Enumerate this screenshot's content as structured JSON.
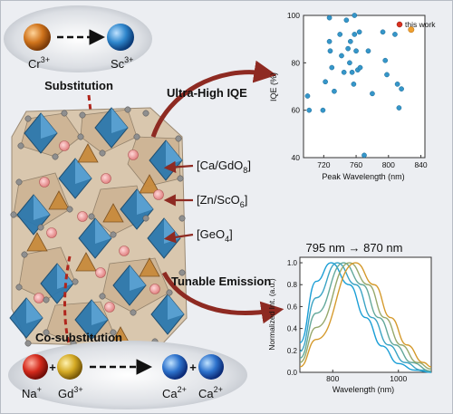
{
  "figure": {
    "labels": {
      "substitution": "Substitution",
      "co_substitution": "Co-substitution",
      "ultra_high_iqe": "Ultra-High IQE",
      "tunable_emission": "Tunable Emission"
    },
    "ions": {
      "cr": "Cr",
      "cr_charge": "3+",
      "sc": "Sc",
      "sc_charge": "3+",
      "na": "Na",
      "na_charge": "+",
      "gd": "Gd",
      "gd_charge": "3+",
      "ca1": "Ca",
      "ca1_charge": "2+",
      "ca2": "Ca",
      "ca2_charge": "2+",
      "plus1": "+",
      "plus2": "+"
    },
    "sites": [
      {
        "pre": "[Ca/GdO",
        "sub": "8",
        "post": "]"
      },
      {
        "pre": "[Zn/ScO",
        "sub": "6",
        "post": "]"
      },
      {
        "pre": "[GeO",
        "sub": "4",
        "post": "]"
      }
    ],
    "colors": {
      "cr_ion": "#c86a18",
      "sc_ion": "#2d80c6",
      "na_ion": "#c4241c",
      "gd_ion": "#c8a21c",
      "ca_ion": "#2d6fc6",
      "arrow": "#8e2a22",
      "octahedra": "#2c78ae",
      "tetrahedra": "#c88a3c",
      "dodecahedra": "#d7c4a8"
    }
  },
  "chart_data": [
    {
      "type": "scatter",
      "xlabel": "Peak Wavelength (nm)",
      "ylabel": "IQE (%)",
      "xlim": [
        695,
        845
      ],
      "ylim": [
        40,
        100
      ],
      "xticks": [
        720,
        760,
        800,
        840
      ],
      "yticks": [
        40,
        60,
        80,
        100
      ],
      "grid": false,
      "legend": "top-right",
      "series": [
        {
          "name": "",
          "color": "#3596c9",
          "points": [
            [
              700,
              66
            ],
            [
              702,
              60
            ],
            [
              719,
              60
            ],
            [
              722,
              72
            ],
            [
              727,
              99
            ],
            [
              727,
              89
            ],
            [
              728,
              85
            ],
            [
              730,
              78
            ],
            [
              733,
              68
            ],
            [
              740,
              92
            ],
            [
              742,
              83
            ],
            [
              745,
              76
            ],
            [
              748,
              98
            ],
            [
              750,
              86
            ],
            [
              752,
              80
            ],
            [
              753,
              89
            ],
            [
              755,
              76
            ],
            [
              757,
              71
            ],
            [
              758,
              100
            ],
            [
              758,
              92
            ],
            [
              760,
              85
            ],
            [
              762,
              77
            ],
            [
              764,
              93
            ],
            [
              765,
              78
            ],
            [
              770,
              41
            ],
            [
              775,
              85
            ],
            [
              780,
              67
            ],
            [
              793,
              93
            ],
            [
              796,
              81
            ],
            [
              798,
              75
            ],
            [
              808,
              92
            ],
            [
              811,
              71
            ],
            [
              813,
              61
            ],
            [
              816,
              69
            ]
          ]
        },
        {
          "name": "this work",
          "color": "#f0a030",
          "points": [
            [
              828,
              94
            ]
          ]
        }
      ]
    },
    {
      "type": "line",
      "title": "795 nm → 870 nm",
      "xlabel": "Wavelength (nm)",
      "ylabel": "Normalized Int. (a.u.)",
      "xlim": [
        700,
        1100
      ],
      "ylim": [
        0,
        1.05
      ],
      "xticks": [
        800,
        1000
      ],
      "yticks": [
        0.0,
        0.2,
        0.4,
        0.6,
        0.8,
        1.0
      ],
      "grid": false,
      "series": [
        {
          "peak_nm": 795,
          "color": "#1a9ed6",
          "values": [
            [
              700,
              0.27
            ],
            [
              750,
              0.83
            ],
            [
              795,
              1.0
            ],
            [
              850,
              0.8
            ],
            [
              900,
              0.5
            ],
            [
              950,
              0.24
            ],
            [
              1000,
              0.08
            ],
            [
              1050,
              0.02
            ],
            [
              1100,
              0.0
            ]
          ]
        },
        {
          "peak_nm": 814,
          "color": "#3aa3c4",
          "values": [
            [
              700,
              0.19
            ],
            [
              750,
              0.68
            ],
            [
              814,
              1.0
            ],
            [
              870,
              0.8
            ],
            [
              920,
              0.5
            ],
            [
              970,
              0.25
            ],
            [
              1020,
              0.09
            ],
            [
              1070,
              0.02
            ],
            [
              1100,
              0.01
            ]
          ]
        },
        {
          "peak_nm": 833,
          "color": "#63a89a",
          "values": [
            [
              700,
              0.13
            ],
            [
              750,
              0.54
            ],
            [
              833,
              1.0
            ],
            [
              890,
              0.8
            ],
            [
              940,
              0.5
            ],
            [
              990,
              0.25
            ],
            [
              1040,
              0.09
            ],
            [
              1100,
              0.01
            ]
          ]
        },
        {
          "peak_nm": 851,
          "color": "#96a86c",
          "values": [
            [
              700,
              0.09
            ],
            [
              750,
              0.41
            ],
            [
              851,
              1.0
            ],
            [
              908,
              0.8
            ],
            [
              958,
              0.5
            ],
            [
              1008,
              0.25
            ],
            [
              1058,
              0.09
            ],
            [
              1100,
              0.03
            ]
          ]
        },
        {
          "peak_nm": 870,
          "color": "#d59a2c",
          "values": [
            [
              700,
              0.05
            ],
            [
              750,
              0.3
            ],
            [
              870,
              1.0
            ],
            [
              926,
              0.8
            ],
            [
              976,
              0.5
            ],
            [
              1026,
              0.25
            ],
            [
              1076,
              0.09
            ],
            [
              1100,
              0.05
            ]
          ]
        }
      ]
    }
  ]
}
